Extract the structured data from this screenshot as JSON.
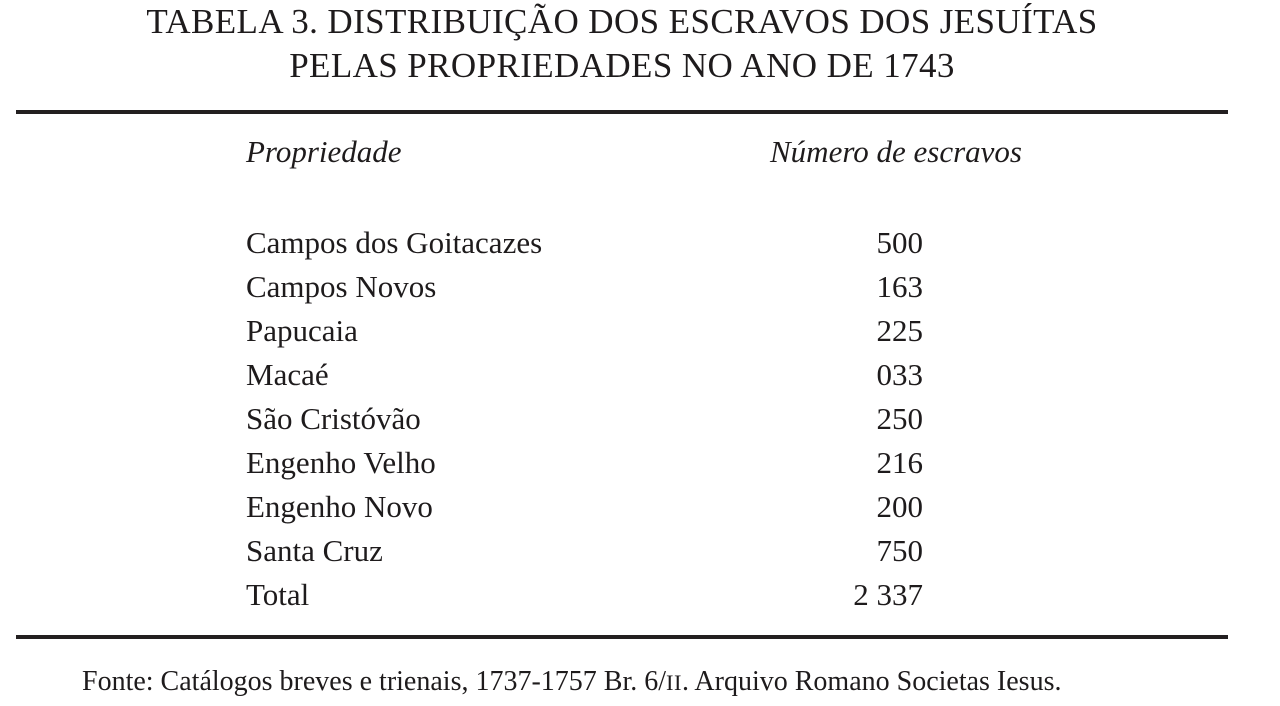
{
  "table": {
    "title_line1": "TABELA 3. DISTRIBUIÇÃO DOS ESCRAVOS DOS JESUÍTAS",
    "title_line2": "PELAS PROPRIEDADES NO ANO DE 1743",
    "columns": [
      "Propriedade",
      "Número de escravos"
    ],
    "rows": [
      {
        "propriedade": "Campos dos Goitacazes",
        "numero": "500"
      },
      {
        "propriedade": "Campos Novos",
        "numero": "163"
      },
      {
        "propriedade": "Papucaia",
        "numero": "225"
      },
      {
        "propriedade": "Macaé",
        "numero": "033"
      },
      {
        "propriedade": "São Cristóvão",
        "numero": "250"
      },
      {
        "propriedade": "Engenho Velho",
        "numero": "216"
      },
      {
        "propriedade": "Engenho Novo",
        "numero": "200"
      },
      {
        "propriedade": "Santa Cruz",
        "numero": "750"
      },
      {
        "propriedade": "Total",
        "numero": "2 337"
      }
    ],
    "source": {
      "prefix": "Fonte: Catálogos breves e trienais, 1737-1757 Br. 6/",
      "roman": "II",
      "suffix": ". Arquivo Romano Societas Iesus."
    }
  },
  "colors": {
    "text": "#1e1b1c",
    "rule": "#231f20",
    "background": "#ffffff"
  },
  "chart_data": {
    "type": "table",
    "title": "TABELA 3. DISTRIBUIÇÃO DOS ESCRAVOS DOS JESUÍTAS PELAS PROPRIEDADES NO ANO DE 1743",
    "columns": [
      "Propriedade",
      "Número de escravos"
    ],
    "rows": [
      [
        "Campos dos Goitacazes",
        500
      ],
      [
        "Campos Novos",
        163
      ],
      [
        "Papucaia",
        225
      ],
      [
        "Macaé",
        33
      ],
      [
        "São Cristóvão",
        250
      ],
      [
        "Engenho Velho",
        216
      ],
      [
        "Engenho Novo",
        200
      ],
      [
        "Santa Cruz",
        750
      ],
      [
        "Total",
        2337
      ]
    ],
    "source": "Fonte: Catálogos breves e trienais, 1737-1757 Br. 6/II. Arquivo Romano Societas Iesus."
  }
}
